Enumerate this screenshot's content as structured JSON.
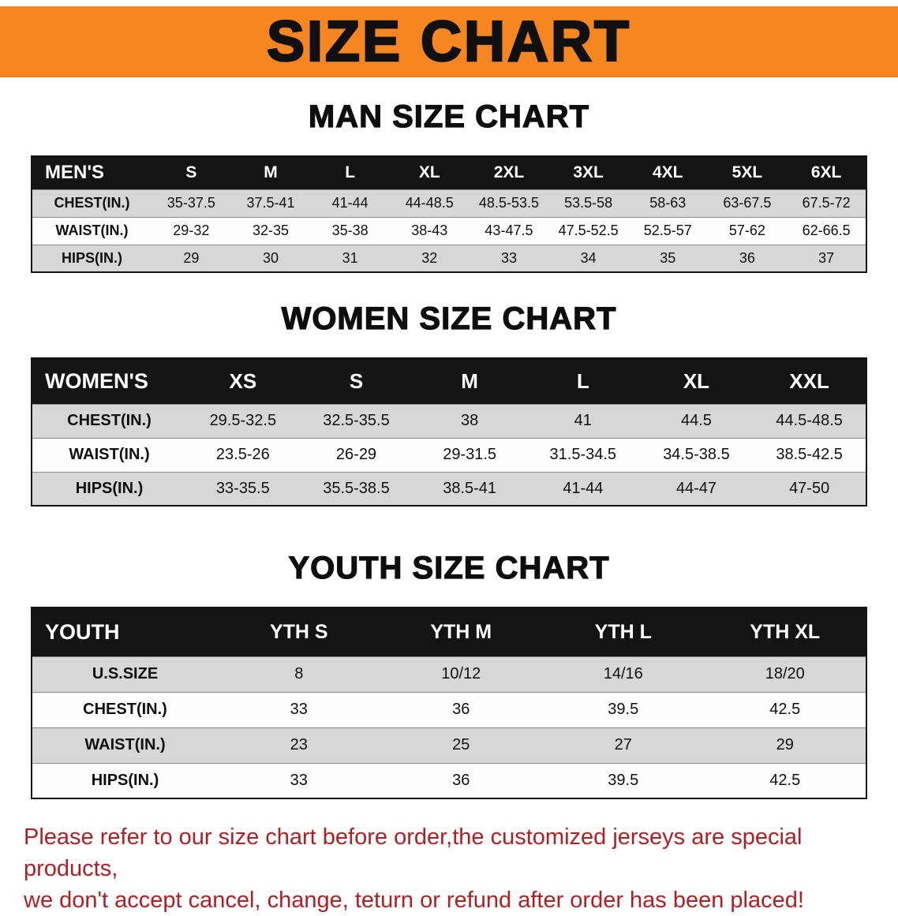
{
  "banner": {
    "title": "SIZE CHART"
  },
  "sections": [
    {
      "id": "men",
      "heading": "MAN SIZE CHART",
      "table": {
        "header": [
          "MEN'S",
          "S",
          "M",
          "L",
          "XL",
          "2XL",
          "3XL",
          "4XL",
          "5XL",
          "6XL"
        ],
        "rows": [
          [
            "CHEST(IN.)",
            "35-37.5",
            "37.5-41",
            "41-44",
            "44-48.5",
            "48.5-53.5",
            "53.5-58",
            "58-63",
            "63-67.5",
            "67.5-72"
          ],
          [
            "WAIST(IN.)",
            "29-32",
            "32-35",
            "35-38",
            "38-43",
            "43-47.5",
            "47.5-52.5",
            "52.5-57",
            "57-62",
            "62-66.5"
          ],
          [
            "HIPS(IN.)",
            "29",
            "30",
            "31",
            "32",
            "33",
            "34",
            "35",
            "36",
            "37"
          ]
        ]
      }
    },
    {
      "id": "women",
      "heading": "WOMEN SIZE CHART",
      "table": {
        "header": [
          "WOMEN'S",
          "XS",
          "S",
          "M",
          "L",
          "XL",
          "XXL"
        ],
        "rows": [
          [
            "CHEST(IN.)",
            "29.5-32.5",
            "32.5-35.5",
            "38",
            "41",
            "44.5",
            "44.5-48.5"
          ],
          [
            "WAIST(IN.)",
            "23.5-26",
            "26-29",
            "29-31.5",
            "31.5-34.5",
            "34.5-38.5",
            "38.5-42.5"
          ],
          [
            "HIPS(IN.)",
            "33-35.5",
            "35.5-38.5",
            "38.5-41",
            "41-44",
            "44-47",
            "47-50"
          ]
        ]
      }
    },
    {
      "id": "youth",
      "heading": "YOUTH SIZE CHART",
      "table": {
        "header": [
          "YOUTH",
          "YTH S",
          "YTH M",
          "YTH L",
          "YTH XL"
        ],
        "rows": [
          [
            "U.S.SIZE",
            "8",
            "10/12",
            "14/16",
            "18/20"
          ],
          [
            "CHEST(IN.)",
            "33",
            "36",
            "39.5",
            "42.5"
          ],
          [
            "WAIST(IN.)",
            "23",
            "25",
            "27",
            "29"
          ],
          [
            "HIPS(IN.)",
            "33",
            "36",
            "39.5",
            "42.5"
          ]
        ]
      }
    }
  ],
  "footer": {
    "line1": "Please refer to our size chart before order,the customized jerseys are special products,",
    "line2": "we don't accept cancel, change, teturn or refund after order has been placed!"
  },
  "colors": {
    "banner-bg": "#f6861f",
    "header-bg": "#141414",
    "row-shade": "#d7d7d7",
    "footer-text": "#b01f24"
  }
}
